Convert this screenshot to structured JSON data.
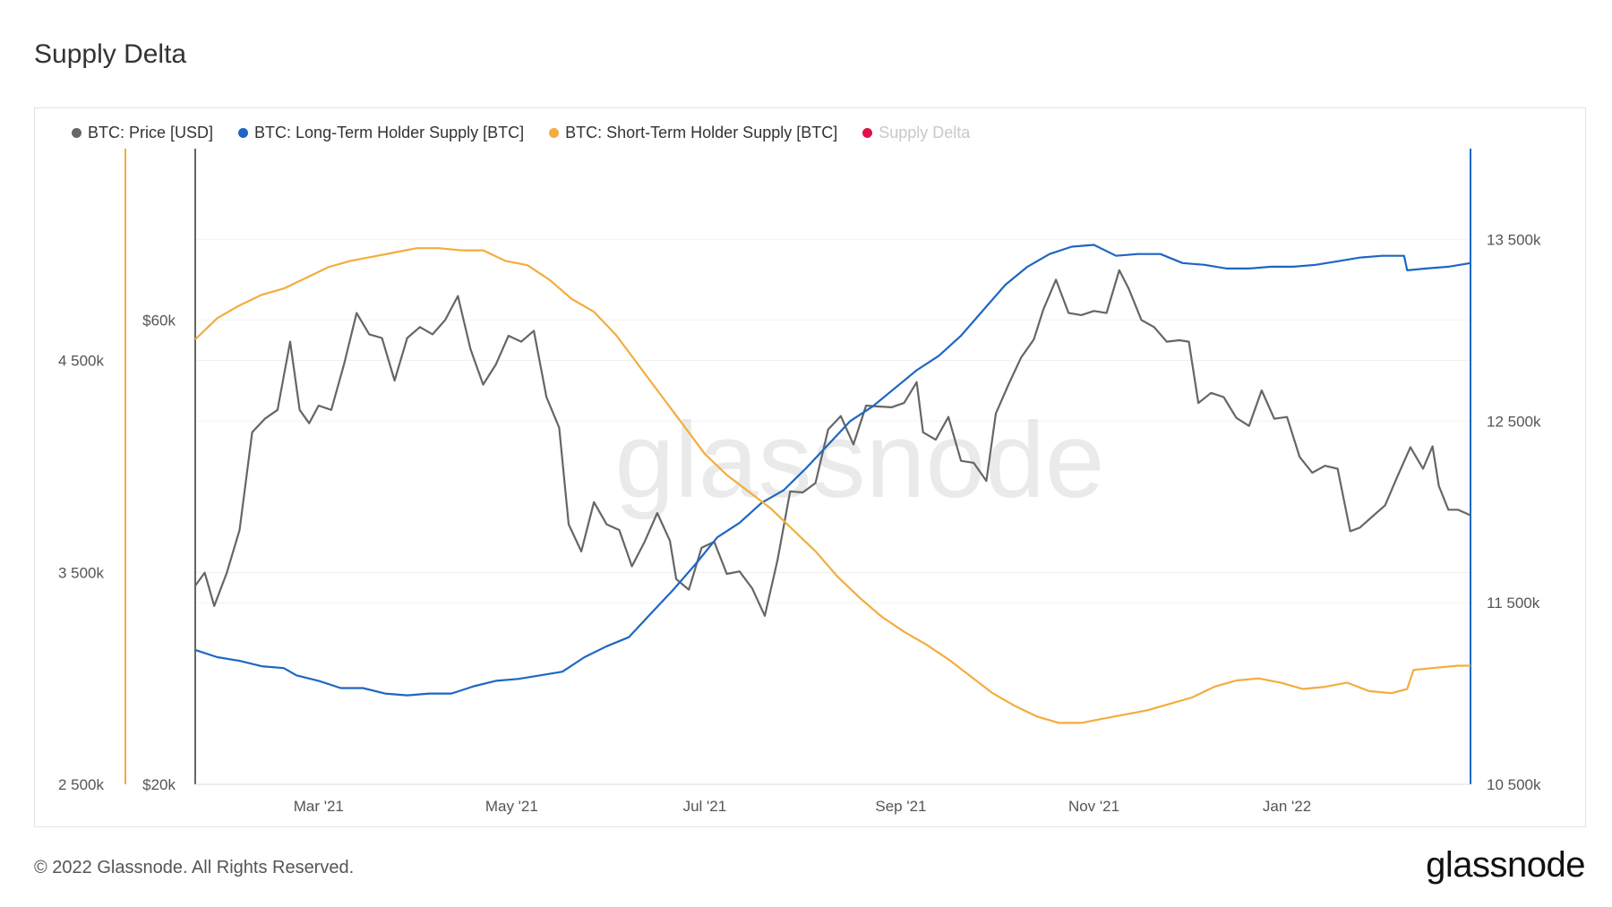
{
  "title": "Supply Delta",
  "legend": [
    {
      "label": "BTC: Price [USD]",
      "color": "#666666",
      "active": true
    },
    {
      "label": "BTC: Long-Term Holder Supply [BTC]",
      "color": "#1f66c2",
      "active": true
    },
    {
      "label": "BTC: Short-Term Holder Supply [BTC]",
      "color": "#f3ad3d",
      "active": true
    },
    {
      "label": "Supply Delta",
      "color": "#e0104b",
      "active": false
    }
  ],
  "watermark": "glassnode",
  "footer": {
    "copyright": "© 2022 Glassnode. All Rights Reserved.",
    "logo": "glassnode"
  },
  "chart_data": {
    "type": "line",
    "title": "Supply Delta",
    "x_ticks": [
      "Mar '21",
      "May '21",
      "Jul '21",
      "Sep '21",
      "Nov '21",
      "Jan '22"
    ],
    "x_tick_dates": [
      "2021-03-01",
      "2021-05-01",
      "2021-07-01",
      "2021-09-01",
      "2021-11-01",
      "2022-01-01"
    ],
    "x_range": [
      "2021-01-21",
      "2022-02-28"
    ],
    "axes": {
      "short_term_supply": {
        "side": "left",
        "range": [
          2500000,
          5500000
        ],
        "ticks": [
          {
            "value": 2500000,
            "label": "2 500k"
          },
          {
            "value": 3500000,
            "label": "3 500k"
          },
          {
            "value": 4500000,
            "label": "4 500k"
          }
        ],
        "color": "#f3ad3d"
      },
      "price": {
        "side": "left-inner",
        "scale": "log",
        "range": [
          20000,
          90000
        ],
        "ticks": [
          {
            "value": 20000,
            "label": "$20k"
          },
          {
            "value": 60000,
            "label": "$60k"
          }
        ],
        "color": "#666666"
      },
      "long_term_supply": {
        "side": "right",
        "range": [
          10500000,
          14000000
        ],
        "ticks": [
          {
            "value": 10500000,
            "label": "10 500k"
          },
          {
            "value": 11500000,
            "label": "11 500k"
          },
          {
            "value": 12500000,
            "label": "12 500k"
          },
          {
            "value": 13500000,
            "label": "13 500k"
          }
        ],
        "color": "#1f66c2"
      }
    },
    "grid": true,
    "legend_position": "top-left",
    "series": [
      {
        "name": "BTC: Price [USD]",
        "axis": "price",
        "color": "#666666",
        "points": [
          [
            "2021-01-21",
            32000
          ],
          [
            "2021-01-24",
            33000
          ],
          [
            "2021-01-27",
            30500
          ],
          [
            "2021-01-31",
            33000
          ],
          [
            "2021-02-04",
            36500
          ],
          [
            "2021-02-08",
            46000
          ],
          [
            "2021-02-12",
            47500
          ],
          [
            "2021-02-16",
            48500
          ],
          [
            "2021-02-20",
            57000
          ],
          [
            "2021-02-23",
            48500
          ],
          [
            "2021-02-26",
            47000
          ],
          [
            "2021-03-01",
            49000
          ],
          [
            "2021-03-05",
            48500
          ],
          [
            "2021-03-09",
            54000
          ],
          [
            "2021-03-13",
            61000
          ],
          [
            "2021-03-17",
            58000
          ],
          [
            "2021-03-21",
            57500
          ],
          [
            "2021-03-25",
            52000
          ],
          [
            "2021-03-29",
            57500
          ],
          [
            "2021-04-02",
            59000
          ],
          [
            "2021-04-06",
            58000
          ],
          [
            "2021-04-10",
            60000
          ],
          [
            "2021-04-14",
            63500
          ],
          [
            "2021-04-18",
            56000
          ],
          [
            "2021-04-22",
            51500
          ],
          [
            "2021-04-26",
            54000
          ],
          [
            "2021-04-30",
            57800
          ],
          [
            "2021-05-04",
            57000
          ],
          [
            "2021-05-08",
            58500
          ],
          [
            "2021-05-12",
            50000
          ],
          [
            "2021-05-16",
            46500
          ],
          [
            "2021-05-19",
            37000
          ],
          [
            "2021-05-23",
            34700
          ],
          [
            "2021-05-27",
            39000
          ],
          [
            "2021-05-31",
            37000
          ],
          [
            "2021-06-04",
            36500
          ],
          [
            "2021-06-08",
            33500
          ],
          [
            "2021-06-12",
            35500
          ],
          [
            "2021-06-16",
            38000
          ],
          [
            "2021-06-20",
            35600
          ],
          [
            "2021-06-22",
            32500
          ],
          [
            "2021-06-26",
            31700
          ],
          [
            "2021-06-30",
            35000
          ],
          [
            "2021-07-04",
            35500
          ],
          [
            "2021-07-08",
            32900
          ],
          [
            "2021-07-12",
            33100
          ],
          [
            "2021-07-16",
            31800
          ],
          [
            "2021-07-20",
            29800
          ],
          [
            "2021-07-24",
            34000
          ],
          [
            "2021-07-28",
            40000
          ],
          [
            "2021-08-01",
            39900
          ],
          [
            "2021-08-05",
            40800
          ],
          [
            "2021-08-09",
            46300
          ],
          [
            "2021-08-13",
            47800
          ],
          [
            "2021-08-17",
            44700
          ],
          [
            "2021-08-21",
            49000
          ],
          [
            "2021-08-25",
            48900
          ],
          [
            "2021-08-29",
            48800
          ],
          [
            "2021-09-02",
            49300
          ],
          [
            "2021-09-06",
            51800
          ],
          [
            "2021-09-08",
            46000
          ],
          [
            "2021-09-12",
            45200
          ],
          [
            "2021-09-16",
            47700
          ],
          [
            "2021-09-20",
            43000
          ],
          [
            "2021-09-24",
            42800
          ],
          [
            "2021-09-28",
            41000
          ],
          [
            "2021-10-01",
            48100
          ],
          [
            "2021-10-05",
            51500
          ],
          [
            "2021-10-09",
            54900
          ],
          [
            "2021-10-13",
            57300
          ],
          [
            "2021-10-16",
            61500
          ],
          [
            "2021-10-20",
            66000
          ],
          [
            "2021-10-24",
            61000
          ],
          [
            "2021-10-28",
            60700
          ],
          [
            "2021-11-01",
            61300
          ],
          [
            "2021-11-05",
            61000
          ],
          [
            "2021-11-09",
            67500
          ],
          [
            "2021-11-12",
            64600
          ],
          [
            "2021-11-16",
            60000
          ],
          [
            "2021-11-20",
            59000
          ],
          [
            "2021-11-24",
            57000
          ],
          [
            "2021-11-28",
            57200
          ],
          [
            "2021-12-01",
            57000
          ],
          [
            "2021-12-04",
            49300
          ],
          [
            "2021-12-08",
            50500
          ],
          [
            "2021-12-12",
            50000
          ],
          [
            "2021-12-16",
            47600
          ],
          [
            "2021-12-20",
            46700
          ],
          [
            "2021-12-24",
            50800
          ],
          [
            "2021-12-28",
            47500
          ],
          [
            "2022-01-01",
            47700
          ],
          [
            "2022-01-05",
            43400
          ],
          [
            "2022-01-09",
            41800
          ],
          [
            "2022-01-13",
            42500
          ],
          [
            "2022-01-17",
            42200
          ],
          [
            "2022-01-21",
            36400
          ],
          [
            "2022-01-24",
            36700
          ],
          [
            "2022-01-28",
            37700
          ],
          [
            "2022-02-01",
            38700
          ],
          [
            "2022-02-05",
            41500
          ],
          [
            "2022-02-09",
            44400
          ],
          [
            "2022-02-13",
            42200
          ],
          [
            "2022-02-16",
            44500
          ],
          [
            "2022-02-18",
            40500
          ],
          [
            "2022-02-21",
            38300
          ],
          [
            "2022-02-24",
            38300
          ],
          [
            "2022-02-28",
            37800
          ]
        ]
      },
      {
        "name": "BTC: Long-Term Holder Supply [BTC]",
        "axis": "long_term_supply",
        "color": "#1f66c2",
        "points": [
          [
            "2021-01-21",
            11240000
          ],
          [
            "2021-01-28",
            11200000
          ],
          [
            "2021-02-04",
            11180000
          ],
          [
            "2021-02-11",
            11150000
          ],
          [
            "2021-02-18",
            11140000
          ],
          [
            "2021-02-22",
            11100000
          ],
          [
            "2021-03-01",
            11070000
          ],
          [
            "2021-03-08",
            11030000
          ],
          [
            "2021-03-15",
            11030000
          ],
          [
            "2021-03-22",
            11000000
          ],
          [
            "2021-03-29",
            10990000
          ],
          [
            "2021-04-05",
            11000000
          ],
          [
            "2021-04-12",
            11000000
          ],
          [
            "2021-04-19",
            11040000
          ],
          [
            "2021-04-26",
            11070000
          ],
          [
            "2021-05-03",
            11080000
          ],
          [
            "2021-05-10",
            11100000
          ],
          [
            "2021-05-17",
            11120000
          ],
          [
            "2021-05-24",
            11200000
          ],
          [
            "2021-05-31",
            11260000
          ],
          [
            "2021-06-07",
            11310000
          ],
          [
            "2021-06-14",
            11440000
          ],
          [
            "2021-06-21",
            11570000
          ],
          [
            "2021-06-28",
            11710000
          ],
          [
            "2021-07-05",
            11860000
          ],
          [
            "2021-07-12",
            11940000
          ],
          [
            "2021-07-19",
            12050000
          ],
          [
            "2021-07-26",
            12120000
          ],
          [
            "2021-08-02",
            12240000
          ],
          [
            "2021-08-09",
            12370000
          ],
          [
            "2021-08-16",
            12500000
          ],
          [
            "2021-08-23",
            12580000
          ],
          [
            "2021-08-30",
            12680000
          ],
          [
            "2021-09-06",
            12780000
          ],
          [
            "2021-09-13",
            12860000
          ],
          [
            "2021-09-20",
            12970000
          ],
          [
            "2021-09-27",
            13110000
          ],
          [
            "2021-10-04",
            13250000
          ],
          [
            "2021-10-11",
            13350000
          ],
          [
            "2021-10-18",
            13420000
          ],
          [
            "2021-10-25",
            13460000
          ],
          [
            "2021-11-01",
            13470000
          ],
          [
            "2021-11-08",
            13410000
          ],
          [
            "2021-11-15",
            13420000
          ],
          [
            "2021-11-22",
            13420000
          ],
          [
            "2021-11-29",
            13370000
          ],
          [
            "2021-12-06",
            13360000
          ],
          [
            "2021-12-13",
            13340000
          ],
          [
            "2021-12-20",
            13340000
          ],
          [
            "2021-12-27",
            13350000
          ],
          [
            "2022-01-03",
            13350000
          ],
          [
            "2022-01-10",
            13360000
          ],
          [
            "2022-01-17",
            13380000
          ],
          [
            "2022-01-24",
            13400000
          ],
          [
            "2022-01-31",
            13410000
          ],
          [
            "2022-02-07",
            13410000
          ],
          [
            "2022-02-08",
            13330000
          ],
          [
            "2022-02-14",
            13340000
          ],
          [
            "2022-02-21",
            13350000
          ],
          [
            "2022-02-28",
            13370000
          ]
        ]
      },
      {
        "name": "BTC: Short-Term Holder Supply [BTC]",
        "axis": "short_term_supply",
        "color": "#f3ad3d",
        "points": [
          [
            "2021-01-21",
            4600000
          ],
          [
            "2021-01-28",
            4700000
          ],
          [
            "2021-02-04",
            4760000
          ],
          [
            "2021-02-11",
            4810000
          ],
          [
            "2021-02-18",
            4840000
          ],
          [
            "2021-02-25",
            4890000
          ],
          [
            "2021-03-04",
            4940000
          ],
          [
            "2021-03-11",
            4970000
          ],
          [
            "2021-03-18",
            4990000
          ],
          [
            "2021-03-25",
            5010000
          ],
          [
            "2021-04-01",
            5030000
          ],
          [
            "2021-04-08",
            5030000
          ],
          [
            "2021-04-15",
            5020000
          ],
          [
            "2021-04-22",
            5020000
          ],
          [
            "2021-04-29",
            4970000
          ],
          [
            "2021-05-06",
            4950000
          ],
          [
            "2021-05-13",
            4880000
          ],
          [
            "2021-05-20",
            4790000
          ],
          [
            "2021-05-27",
            4730000
          ],
          [
            "2021-06-03",
            4620000
          ],
          [
            "2021-06-10",
            4480000
          ],
          [
            "2021-06-17",
            4340000
          ],
          [
            "2021-06-24",
            4200000
          ],
          [
            "2021-07-01",
            4060000
          ],
          [
            "2021-07-08",
            3960000
          ],
          [
            "2021-07-15",
            3880000
          ],
          [
            "2021-07-22",
            3800000
          ],
          [
            "2021-07-29",
            3700000
          ],
          [
            "2021-08-05",
            3600000
          ],
          [
            "2021-08-12",
            3480000
          ],
          [
            "2021-08-19",
            3380000
          ],
          [
            "2021-08-26",
            3290000
          ],
          [
            "2021-09-02",
            3220000
          ],
          [
            "2021-09-09",
            3160000
          ],
          [
            "2021-09-16",
            3090000
          ],
          [
            "2021-09-23",
            3010000
          ],
          [
            "2021-09-30",
            2930000
          ],
          [
            "2021-10-07",
            2870000
          ],
          [
            "2021-10-14",
            2820000
          ],
          [
            "2021-10-21",
            2790000
          ],
          [
            "2021-10-28",
            2790000
          ],
          [
            "2021-11-04",
            2810000
          ],
          [
            "2021-11-11",
            2830000
          ],
          [
            "2021-11-18",
            2850000
          ],
          [
            "2021-11-25",
            2880000
          ],
          [
            "2021-12-02",
            2910000
          ],
          [
            "2021-12-09",
            2960000
          ],
          [
            "2021-12-16",
            2990000
          ],
          [
            "2021-12-23",
            3000000
          ],
          [
            "2021-12-30",
            2980000
          ],
          [
            "2022-01-06",
            2950000
          ],
          [
            "2022-01-13",
            2960000
          ],
          [
            "2022-01-20",
            2980000
          ],
          [
            "2022-01-27",
            2940000
          ],
          [
            "2022-02-03",
            2930000
          ],
          [
            "2022-02-08",
            2950000
          ],
          [
            "2022-02-10",
            3040000
          ],
          [
            "2022-02-17",
            3050000
          ],
          [
            "2022-02-24",
            3060000
          ],
          [
            "2022-02-28",
            3060000
          ]
        ]
      },
      {
        "name": "Supply Delta",
        "axis": "none",
        "color": "#e0104b",
        "visible": false,
        "points": []
      }
    ]
  }
}
